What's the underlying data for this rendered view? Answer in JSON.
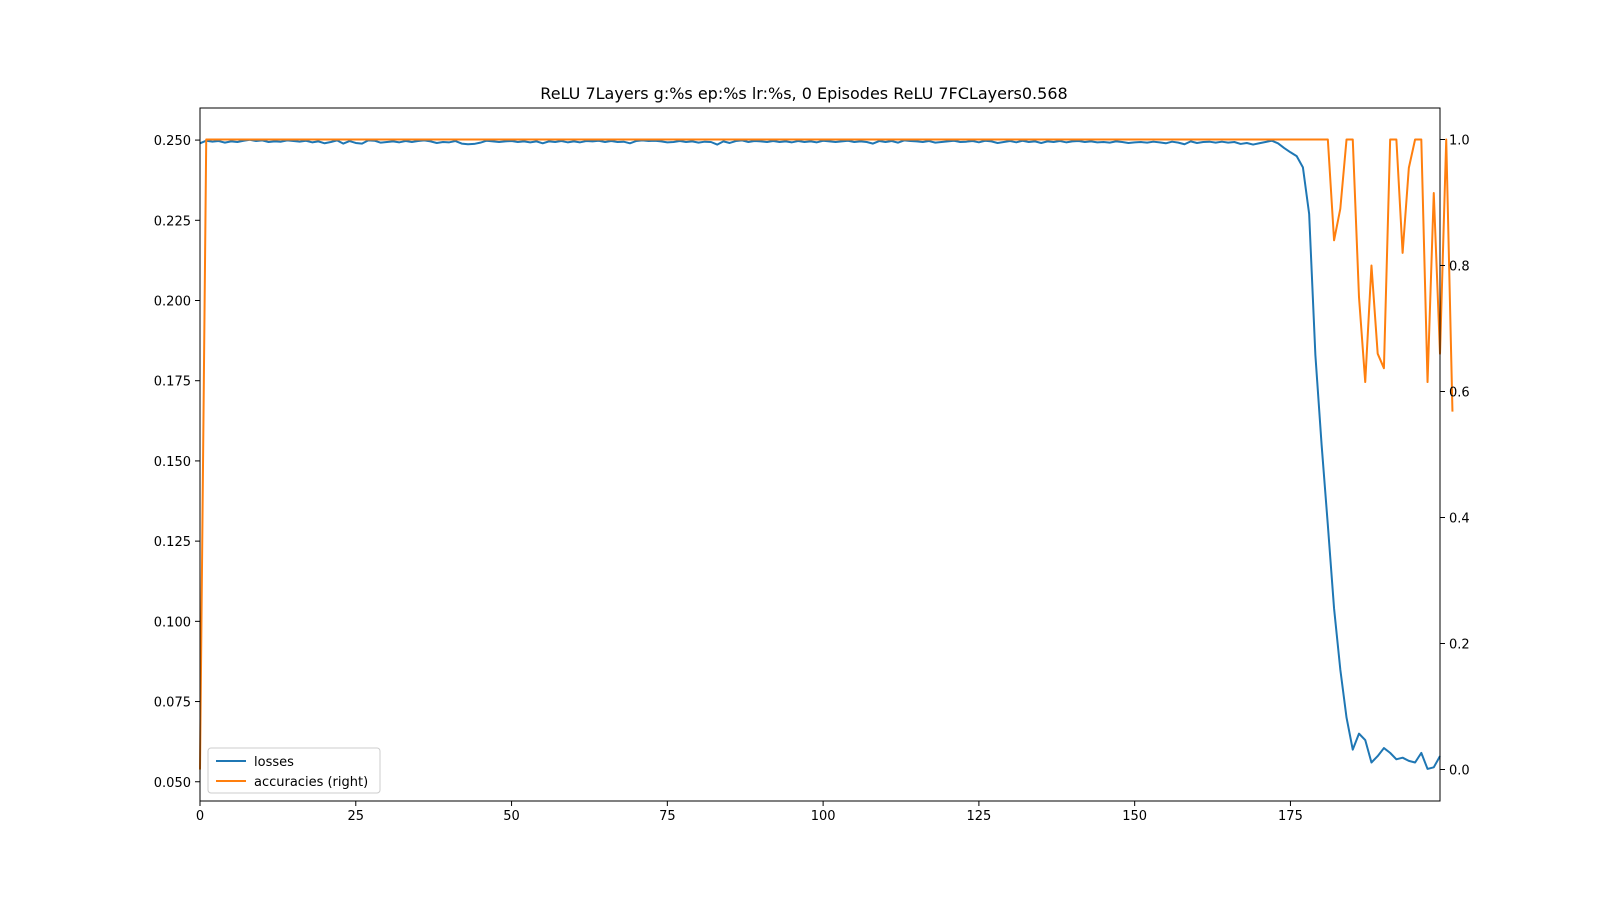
{
  "chart_data": {
    "type": "line",
    "title": "ReLU 7Layers g:%s ep:%s lr:%s, 0 Episodes ReLU 7FCLayers0.568",
    "xlabel": "",
    "ylabel": "",
    "xlim": [
      0,
      199
    ],
    "ylim_left": [
      0.044,
      0.26
    ],
    "ylim_right": [
      -0.05,
      1.05
    ],
    "grid": false,
    "legend_position": "lower-left",
    "x_ticks": [
      0,
      25,
      50,
      75,
      100,
      125,
      150,
      175
    ],
    "x_tick_labels": [
      "0",
      "25",
      "50",
      "75",
      "100",
      "125",
      "150",
      "175"
    ],
    "left_ticks": [
      0.05,
      0.075,
      0.1,
      0.125,
      0.15,
      0.175,
      0.2,
      0.225,
      0.25
    ],
    "left_tick_labels": [
      "0.050",
      "0.075",
      "0.100",
      "0.125",
      "0.150",
      "0.175",
      "0.200",
      "0.225",
      "0.250"
    ],
    "right_ticks": [
      0.0,
      0.2,
      0.4,
      0.6,
      0.8,
      1.0
    ],
    "right_tick_labels": [
      "0.0",
      "0.2",
      "0.4",
      "0.6",
      "0.8",
      "1.0"
    ],
    "series": [
      {
        "name": "losses",
        "axis": "left",
        "color": "#1f77b4",
        "values": [
          0.249,
          0.2498,
          0.2495,
          0.2497,
          0.2492,
          0.2496,
          0.2494,
          0.2498,
          0.2501,
          0.2497,
          0.2499,
          0.2494,
          0.2496,
          0.2495,
          0.2499,
          0.2497,
          0.2495,
          0.2498,
          0.2493,
          0.2496,
          0.249,
          0.2494,
          0.2499,
          0.2489,
          0.2497,
          0.2491,
          0.2489,
          0.2499,
          0.2498,
          0.2492,
          0.2494,
          0.2496,
          0.2493,
          0.2497,
          0.2494,
          0.2497,
          0.2499,
          0.2496,
          0.2491,
          0.2494,
          0.2493,
          0.2497,
          0.2489,
          0.2487,
          0.2488,
          0.2492,
          0.2498,
          0.2496,
          0.2494,
          0.2496,
          0.2497,
          0.2494,
          0.2496,
          0.2493,
          0.2496,
          0.249,
          0.2496,
          0.2494,
          0.2497,
          0.2493,
          0.2496,
          0.2493,
          0.2497,
          0.2496,
          0.2498,
          0.2494,
          0.2497,
          0.2494,
          0.2495,
          0.249,
          0.2497,
          0.2499,
          0.2497,
          0.2498,
          0.2496,
          0.2493,
          0.2494,
          0.2497,
          0.2494,
          0.2496,
          0.2492,
          0.2495,
          0.2494,
          0.2486,
          0.2496,
          0.2491,
          0.2497,
          0.2499,
          0.2494,
          0.2497,
          0.2496,
          0.2494,
          0.2497,
          0.2494,
          0.2496,
          0.2493,
          0.2497,
          0.2494,
          0.2496,
          0.2493,
          0.2498,
          0.2496,
          0.2494,
          0.2496,
          0.2498,
          0.2494,
          0.2496,
          0.2494,
          0.2489,
          0.2497,
          0.2494,
          0.2497,
          0.2492,
          0.2499,
          0.2497,
          0.2496,
          0.2494,
          0.2497,
          0.2492,
          0.2494,
          0.2496,
          0.2498,
          0.2494,
          0.2495,
          0.2497,
          0.2493,
          0.2498,
          0.2496,
          0.2491,
          0.2494,
          0.2497,
          0.2493,
          0.2498,
          0.2494,
          0.2496,
          0.2491,
          0.2496,
          0.2494,
          0.2497,
          0.2493,
          0.2496,
          0.2497,
          0.2494,
          0.2496,
          0.2493,
          0.2494,
          0.2492,
          0.2496,
          0.2494,
          0.2491,
          0.2493,
          0.2494,
          0.2492,
          0.2495,
          0.2493,
          0.249,
          0.2495,
          0.2492,
          0.2487,
          0.2496,
          0.2491,
          0.2494,
          0.2495,
          0.2492,
          0.2495,
          0.2492,
          0.2494,
          0.2488,
          0.2491,
          0.2486,
          0.249,
          0.2494,
          0.2498,
          0.249,
          0.2475,
          0.2462,
          0.245,
          0.2415,
          0.227,
          0.183,
          0.155,
          0.13,
          0.104,
          0.085,
          0.07,
          0.06,
          0.065,
          0.063,
          0.056,
          0.058,
          0.0605,
          0.059,
          0.057,
          0.0575,
          0.0565,
          0.056,
          0.059,
          0.054,
          0.0545,
          0.058
        ]
      },
      {
        "name": "accuracies (right)",
        "axis": "right",
        "color": "#ff7f0e",
        "values": [
          0.0,
          1.0,
          1.0,
          1.0,
          1.0,
          1.0,
          1.0,
          1.0,
          1.0,
          1.0,
          1.0,
          1.0,
          1.0,
          1.0,
          1.0,
          1.0,
          1.0,
          1.0,
          1.0,
          1.0,
          1.0,
          1.0,
          1.0,
          1.0,
          1.0,
          1.0,
          1.0,
          1.0,
          1.0,
          1.0,
          1.0,
          1.0,
          1.0,
          1.0,
          1.0,
          1.0,
          1.0,
          1.0,
          1.0,
          1.0,
          1.0,
          1.0,
          1.0,
          1.0,
          1.0,
          1.0,
          1.0,
          1.0,
          1.0,
          1.0,
          1.0,
          1.0,
          1.0,
          1.0,
          1.0,
          1.0,
          1.0,
          1.0,
          1.0,
          1.0,
          1.0,
          1.0,
          1.0,
          1.0,
          1.0,
          1.0,
          1.0,
          1.0,
          1.0,
          1.0,
          1.0,
          1.0,
          1.0,
          1.0,
          1.0,
          1.0,
          1.0,
          1.0,
          1.0,
          1.0,
          1.0,
          1.0,
          1.0,
          1.0,
          1.0,
          1.0,
          1.0,
          1.0,
          1.0,
          1.0,
          1.0,
          1.0,
          1.0,
          1.0,
          1.0,
          1.0,
          1.0,
          1.0,
          1.0,
          1.0,
          1.0,
          1.0,
          1.0,
          1.0,
          1.0,
          1.0,
          1.0,
          1.0,
          1.0,
          1.0,
          1.0,
          1.0,
          1.0,
          1.0,
          1.0,
          1.0,
          1.0,
          1.0,
          1.0,
          1.0,
          1.0,
          1.0,
          1.0,
          1.0,
          1.0,
          1.0,
          1.0,
          1.0,
          1.0,
          1.0,
          1.0,
          1.0,
          1.0,
          1.0,
          1.0,
          1.0,
          1.0,
          1.0,
          1.0,
          1.0,
          1.0,
          1.0,
          1.0,
          1.0,
          1.0,
          1.0,
          1.0,
          1.0,
          1.0,
          1.0,
          1.0,
          1.0,
          1.0,
          1.0,
          1.0,
          1.0,
          1.0,
          1.0,
          1.0,
          1.0,
          1.0,
          1.0,
          1.0,
          1.0,
          1.0,
          1.0,
          1.0,
          1.0,
          1.0,
          1.0,
          1.0,
          1.0,
          1.0,
          1.0,
          1.0,
          1.0,
          1.0,
          1.0,
          1.0,
          1.0,
          1.0,
          1.0,
          0.84,
          0.89,
          1.0,
          1.0,
          0.75,
          0.615,
          0.8,
          0.66,
          0.637,
          1.0,
          1.0,
          0.82,
          0.955,
          1.0,
          1.0,
          0.615,
          0.915,
          0.66,
          1.0,
          0.568
        ]
      }
    ]
  }
}
